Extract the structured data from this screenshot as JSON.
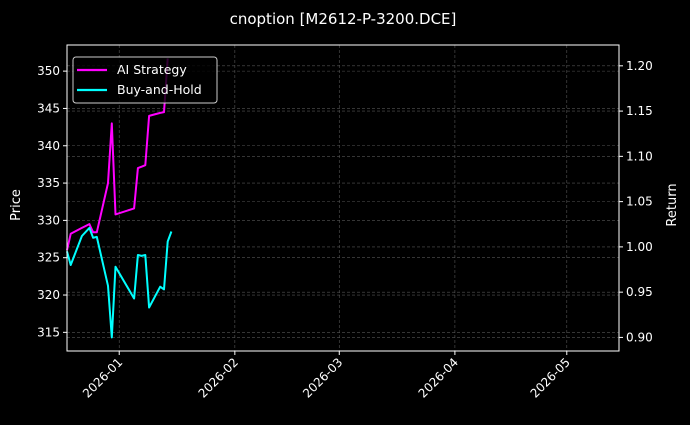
{
  "chart_data": {
    "type": "line",
    "title": "cnoption [M2612-P-3200.DCE]",
    "xlabel": "",
    "ylabel": "Price",
    "ylabel_right": "Return",
    "xlim": [
      "2025-12-18",
      "2026-05-15"
    ],
    "ylim": [
      312.5,
      353.5
    ],
    "ylim_right": [
      0.885,
      1.223
    ],
    "grid": true,
    "legend_position": "upper left",
    "x_ticks": [
      "2026-01",
      "2026-02",
      "2026-03",
      "2026-04",
      "2026-05"
    ],
    "y_ticks": [
      315,
      320,
      325,
      330,
      335,
      340,
      345,
      350
    ],
    "y_ticks_right": [
      "0.90",
      "0.95",
      "1.00",
      "1.05",
      "1.10",
      "1.15",
      "1.20"
    ],
    "x": [
      "2025-12-18",
      "2025-12-19",
      "2025-12-22",
      "2025-12-24",
      "2025-12-25",
      "2025-12-26",
      "2025-12-29",
      "2025-12-30",
      "2025-12-31",
      "2026-01-05",
      "2026-01-06",
      "2026-01-07",
      "2026-01-08",
      "2026-01-09",
      "2026-01-12",
      "2026-01-13",
      "2026-01-14",
      "2026-01-15"
    ],
    "series": [
      {
        "name": "AI Strategy",
        "axis": "left",
        "color": "#ff00ff",
        "values": [
          326,
          328.2,
          329,
          329.5,
          328.4,
          328.4,
          335,
          343,
          330.8,
          331.6,
          337,
          337.2,
          337.4,
          344,
          344.4,
          344.5,
          351.7,
          null
        ]
      },
      {
        "name": "Buy-and-Hold",
        "axis": "right",
        "color": "#00ffff",
        "values": [
          0.995,
          0.98,
          1.012,
          1.021,
          1.01,
          1.011,
          0.957,
          0.9,
          0.978,
          0.943,
          0.991,
          0.99,
          0.991,
          0.933,
          0.956,
          0.953,
          1.006,
          1.017
        ]
      }
    ]
  },
  "legend": {
    "items": [
      {
        "label": "AI Strategy",
        "color": "#ff00ff"
      },
      {
        "label": "Buy-and-Hold",
        "color": "#00ffff"
      }
    ]
  }
}
